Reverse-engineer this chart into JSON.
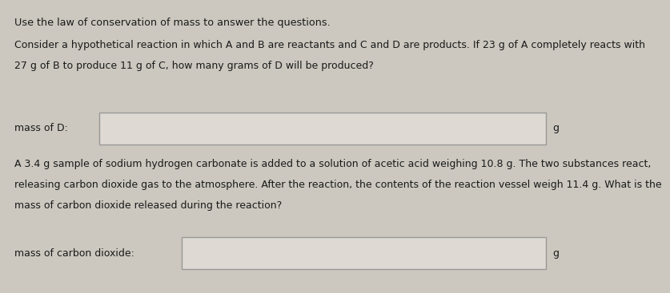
{
  "background_color": "#ccc8bf",
  "box_fill_color": "#dedad3",
  "text_color": "#1a1a1a",
  "title_line": "Use the law of conservation of mass to answer the questions.",
  "paragraph1_line1": "Consider a hypothetical reaction in which A and B are reactants and C and D are products. If 23 g of A completely reacts with",
  "paragraph1_line2": "27 g of B to produce 11 g of C, how many grams of D will be produced?",
  "label1": "mass of D:",
  "unit1": "g",
  "paragraph2_line1": "A 3.4 g sample of sodium hydrogen carbonate is added to a solution of acetic acid weighing 10.8 g. The two substances react,",
  "paragraph2_line2": "releasing carbon dioxide gas to the atmosphere. After the reaction, the contents of the reaction vessel weigh 11.4 g. What is the",
  "paragraph2_line3": "mass of carbon dioxide released during the reaction?",
  "label2": "mass of carbon dioxide:",
  "unit2": "g",
  "font_size_title": 9.2,
  "font_size_body": 9.0,
  "font_size_label": 9.0
}
